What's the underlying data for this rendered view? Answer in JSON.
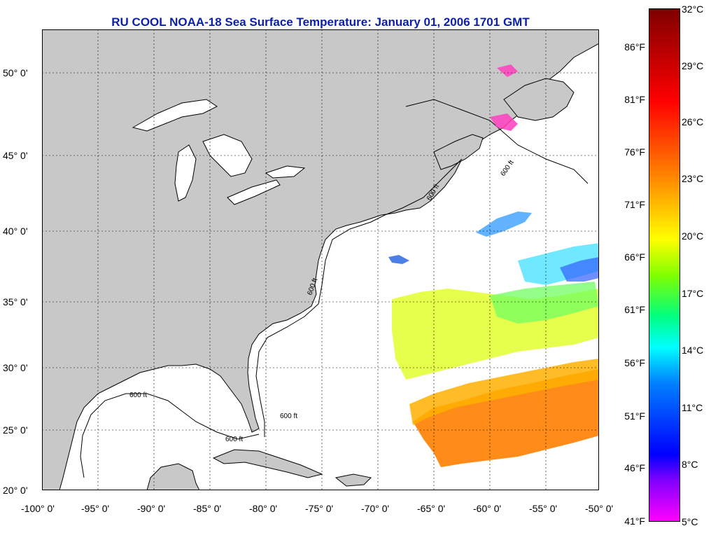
{
  "title": "RU COOL  NOAA-18  Sea Surface Temperature:  January 01, 2006 1701 GMT",
  "lat_ticks": [
    "50° 0'",
    "45° 0'",
    "40° 0'",
    "35° 0'",
    "30° 0'",
    "25° 0'",
    "20° 0'"
  ],
  "lon_ticks": [
    "-100° 0'",
    "-95° 0'",
    "-90° 0'",
    "-85° 0'",
    "-80° 0'",
    "-75° 0'",
    "-70° 0'",
    "-65° 0'",
    "-60° 0'",
    "-55° 0'",
    "-50° 0'"
  ],
  "colorbar": {
    "fahrenheit_labels": [
      "86°F",
      "81°F",
      "76°F",
      "71°F",
      "66°F",
      "61°F",
      "56°F",
      "51°F",
      "46°F",
      "41°F"
    ],
    "celsius_labels": [
      "32°C",
      "29°C",
      "26°C",
      "23°C",
      "20°C",
      "17°C",
      "14°C",
      "11°C",
      "8°C",
      "5°C"
    ],
    "colors": [
      "#7f0000",
      "#ff0000",
      "#ff7f00",
      "#ffff00",
      "#80ff00",
      "#00ff80",
      "#00ffff",
      "#0080ff",
      "#0000ff",
      "#8000ff",
      "#ff00ff"
    ]
  },
  "contour_label": "600 ft",
  "colors": {
    "land": "#c8c8c8",
    "water": "#ffffff",
    "title": "#0b1fa8",
    "grid": "#000000"
  }
}
